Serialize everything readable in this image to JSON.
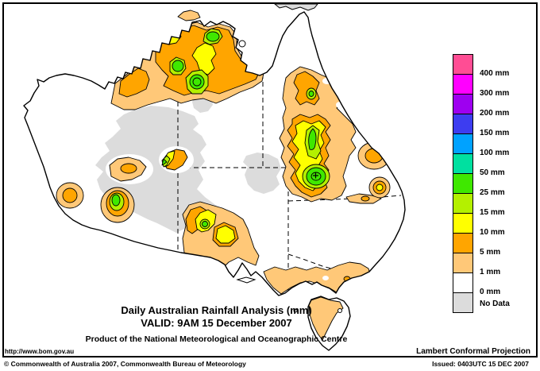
{
  "title_block": {
    "line1": "Daily Australian Rainfall Analysis (mm)",
    "line2": "VALID: 9AM 15 December 2007",
    "line3": "Product of the National Meteorological and Oceanographic Centre"
  },
  "footer": {
    "url": "http://www.bom.gov.au",
    "projection": "Lambert Conformal Projection",
    "copyright": "© Commonwealth of Australia 2007, Commonwealth Bureau of Meteorology",
    "issued": "Issued: 0403UTC 15 DEC 2007"
  },
  "legend": {
    "entries": [
      {
        "color": "#FF4D94",
        "label": "400 mm"
      },
      {
        "color": "#FF00FF",
        "label": "300 mm"
      },
      {
        "color": "#9E00F0",
        "label": "200 mm"
      },
      {
        "color": "#3D3DF0",
        "label": "150 mm"
      },
      {
        "color": "#00A2FF",
        "label": "100 mm"
      },
      {
        "color": "#00E0A0",
        "label": "50 mm"
      },
      {
        "color": "#3FE800",
        "label": "25 mm"
      },
      {
        "color": "#B4F000",
        "label": "15 mm"
      },
      {
        "color": "#FFFF00",
        "label": "10 mm"
      },
      {
        "color": "#FFA500",
        "label": "5 mm"
      },
      {
        "color": "#FFC878",
        "label": "1 mm"
      },
      {
        "color": "#FFFFFF",
        "label": "0 mm"
      },
      {
        "color": "#DCDCDC",
        "label": "No Data"
      }
    ]
  },
  "map": {
    "region": "Australia",
    "colors": {
      "coastline": "#000000",
      "land": "#FFFFFF",
      "no_data": "#DCDCDC",
      "rain_1mm": "#FFC878",
      "rain_5mm": "#FFA500",
      "rain_10mm": "#FFFF00",
      "rain_15mm": "#B4F000",
      "rain_25mm": "#3FE800"
    }
  }
}
